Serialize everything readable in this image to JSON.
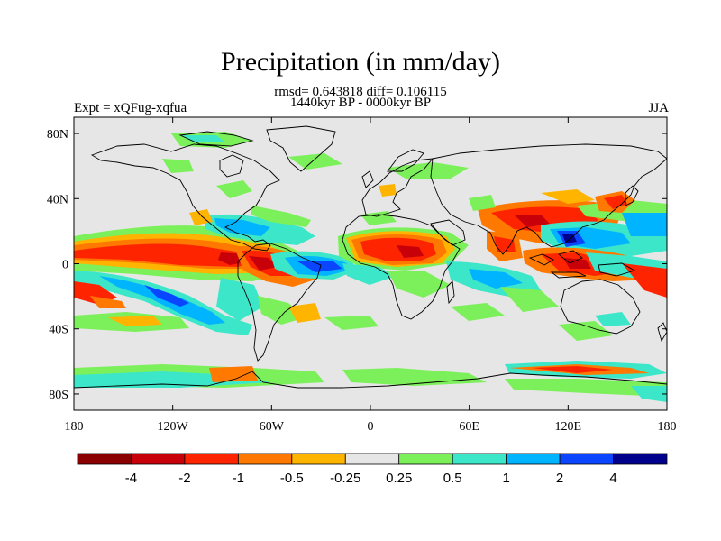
{
  "title": "Precipitation (in mm/day)",
  "subtitle": "rmsd= 0.643818 diff= 0.106115",
  "period": "1440kyr BP - 0000kyr BP",
  "expt": "Expt = xQFug-xqfua",
  "season": "JJA",
  "axes": {
    "x_ticks": [
      {
        "lon": -180,
        "label": "180"
      },
      {
        "lon": -120,
        "label": "120W"
      },
      {
        "lon": -60,
        "label": "60W"
      },
      {
        "lon": 0,
        "label": "0"
      },
      {
        "lon": 60,
        "label": "60E"
      },
      {
        "lon": 120,
        "label": "120E"
      },
      {
        "lon": 180,
        "label": "180"
      }
    ],
    "y_ticks": [
      {
        "lat": 80,
        "label": "80N"
      },
      {
        "lat": 40,
        "label": "40N"
      },
      {
        "lat": 0,
        "label": "0"
      },
      {
        "lat": -40,
        "label": "40S"
      },
      {
        "lat": -80,
        "label": "80S"
      }
    ],
    "lon_range": [
      -180,
      180
    ],
    "lat_range": [
      -90,
      90
    ]
  },
  "colorbar": {
    "colors": [
      "#8b0000",
      "#c8000a",
      "#ff2400",
      "#ff7800",
      "#ffb400",
      "#e6e6e6",
      "#7cf05a",
      "#3ce6c8",
      "#00b4ff",
      "#0a46ff",
      "#00008c"
    ],
    "labels": [
      "-4",
      "-2",
      "-1",
      "-0.5",
      "-0.25",
      "0.25",
      "0.5",
      "1",
      "2",
      "4"
    ]
  },
  "colors": {
    "background": "#e6e6e6",
    "coast": "#000000"
  }
}
